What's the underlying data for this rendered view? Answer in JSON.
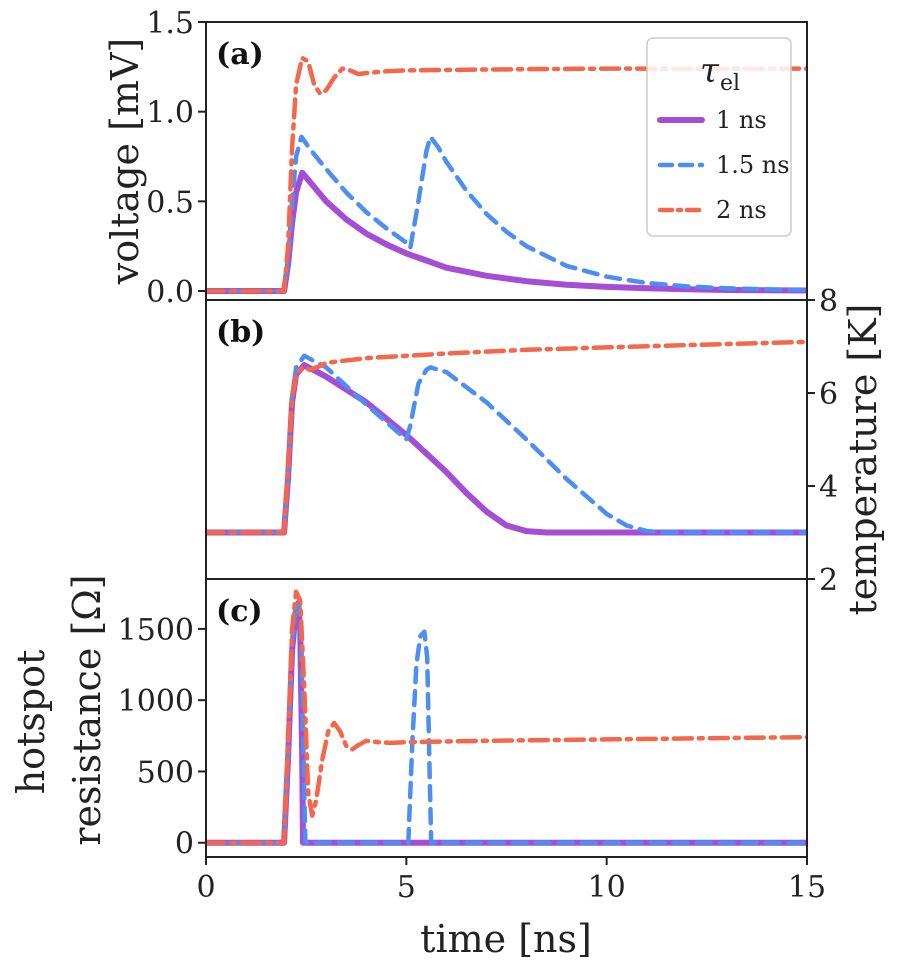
{
  "chart_data": [
    {
      "type": "line",
      "panel_label": "(a)",
      "ylabel": "voltage [mV]",
      "ylim": [
        -0.05,
        1.5
      ],
      "xlim": [
        0,
        15
      ],
      "yticks": [
        0.0,
        0.5,
        1.0,
        1.5
      ],
      "ytick_labels": [
        "0.0",
        "0.5",
        "1.0",
        "1.5"
      ],
      "legend": {
        "title": "τ",
        "title_subscript": "el",
        "placement": "top-right",
        "entries": [
          "1 ns",
          "1.5 ns",
          "2 ns"
        ]
      },
      "series": [
        {
          "name": "1 ns",
          "x": [
            0,
            1.95,
            2.05,
            2.15,
            2.25,
            2.4,
            2.7,
            3.0,
            3.5,
            4.0,
            4.5,
            5.0,
            5.5,
            6.0,
            7.0,
            8.0,
            9.0,
            10.0,
            11.0,
            12.0,
            13.0,
            14.0,
            15.0
          ],
          "y": [
            0,
            0,
            0.15,
            0.38,
            0.55,
            0.66,
            0.58,
            0.5,
            0.4,
            0.32,
            0.26,
            0.21,
            0.17,
            0.13,
            0.085,
            0.055,
            0.035,
            0.023,
            0.015,
            0.01,
            0.006,
            0.004,
            0.003
          ]
        },
        {
          "name": "1.5 ns",
          "x": [
            0,
            1.95,
            2.05,
            2.15,
            2.25,
            2.38,
            2.6,
            3.0,
            3.5,
            4.0,
            4.5,
            5.0,
            5.1,
            5.3,
            5.5,
            5.6,
            5.8,
            6.0,
            6.5,
            7.0,
            7.5,
            8.0,
            9.0,
            10.0,
            11.0,
            12.0,
            13.0,
            14.0,
            15.0
          ],
          "y": [
            0,
            0,
            0.18,
            0.5,
            0.75,
            0.86,
            0.79,
            0.68,
            0.55,
            0.44,
            0.35,
            0.27,
            0.24,
            0.5,
            0.78,
            0.86,
            0.8,
            0.72,
            0.56,
            0.43,
            0.33,
            0.25,
            0.14,
            0.08,
            0.045,
            0.026,
            0.015,
            0.009,
            0.005
          ]
        },
        {
          "name": "2 ns",
          "x": [
            0,
            1.95,
            2.05,
            2.15,
            2.25,
            2.4,
            2.55,
            2.7,
            2.85,
            3.0,
            3.2,
            3.4,
            3.6,
            3.8,
            4.0,
            4.5,
            5.0,
            7.0,
            10.0,
            13.0,
            15.0
          ],
          "y": [
            0,
            0,
            0.25,
            0.8,
            1.15,
            1.3,
            1.28,
            1.15,
            1.1,
            1.12,
            1.19,
            1.24,
            1.23,
            1.21,
            1.215,
            1.225,
            1.23,
            1.235,
            1.24,
            1.24,
            1.24
          ]
        }
      ]
    },
    {
      "type": "line",
      "panel_label": "(b)",
      "ylabel": "temperature [K]",
      "ylim": [
        2,
        8
      ],
      "xlim": [
        0,
        15
      ],
      "yticks": [
        2,
        4,
        6,
        8
      ],
      "ytick_labels": [
        "2",
        "4",
        "6",
        "8"
      ],
      "series": [
        {
          "name": "1 ns",
          "x": [
            0,
            1.95,
            2.05,
            2.15,
            2.25,
            2.45,
            3.0,
            4.0,
            5.0,
            6.0,
            6.5,
            7.0,
            7.5,
            8.0,
            8.5,
            9.0,
            10.0,
            15.0
          ],
          "y": [
            3.0,
            3.0,
            4.2,
            5.8,
            6.4,
            6.6,
            6.35,
            5.8,
            5.1,
            4.3,
            3.85,
            3.45,
            3.15,
            3.03,
            3.0,
            3.0,
            3.0,
            3.0
          ]
        },
        {
          "name": "1.5 ns",
          "x": [
            0,
            1.95,
            2.05,
            2.15,
            2.25,
            2.45,
            3.0,
            4.0,
            5.0,
            5.1,
            5.3,
            5.5,
            5.6,
            6.0,
            7.0,
            8.0,
            9.0,
            10.0,
            10.5,
            11.0,
            11.5,
            12.0,
            15.0
          ],
          "y": [
            3.0,
            3.0,
            4.3,
            5.9,
            6.55,
            6.8,
            6.55,
            5.75,
            5.0,
            5.3,
            6.2,
            6.5,
            6.55,
            6.45,
            5.8,
            5.0,
            4.15,
            3.4,
            3.15,
            3.03,
            3.0,
            3.0,
            3.0
          ]
        },
        {
          "name": "2 ns",
          "x": [
            0,
            1.95,
            2.05,
            2.15,
            2.25,
            2.4,
            2.6,
            2.9,
            3.0,
            4.0,
            6.0,
            8.0,
            10.0,
            12.0,
            15.0
          ],
          "y": [
            3.0,
            3.0,
            4.4,
            5.9,
            6.4,
            6.55,
            6.5,
            6.6,
            6.65,
            6.75,
            6.85,
            6.93,
            6.98,
            7.03,
            7.1
          ]
        }
      ]
    },
    {
      "type": "line",
      "panel_label": "(c)",
      "ylabel_line1": "hotspot",
      "ylabel_line2": "resistance [Ω]",
      "xlabel": "time [ns]",
      "ylim": [
        -100,
        1850
      ],
      "xlim": [
        0,
        15
      ],
      "yticks": [
        0,
        500,
        1000,
        1500
      ],
      "ytick_labels": [
        "0",
        "500",
        "1000",
        "1500"
      ],
      "xticks": [
        0,
        5,
        10,
        15
      ],
      "xtick_labels": [
        "0",
        "5",
        "10",
        "15"
      ],
      "series": [
        {
          "name": "1 ns",
          "x": [
            0,
            1.95,
            2.05,
            2.15,
            2.25,
            2.3,
            2.35,
            2.4,
            2.42,
            15.0
          ],
          "y": [
            0,
            0,
            600,
            1350,
            1650,
            1680,
            1500,
            600,
            0,
            0
          ]
        },
        {
          "name": "1.5 ns",
          "x": [
            0,
            1.95,
            2.05,
            2.15,
            2.25,
            2.32,
            2.38,
            2.44,
            2.48,
            5.05,
            5.15,
            5.25,
            5.35,
            5.45,
            5.52,
            5.58,
            5.62,
            15.0
          ],
          "y": [
            0,
            0,
            650,
            1400,
            1680,
            1700,
            1400,
            500,
            0,
            0,
            700,
            1250,
            1450,
            1480,
            1300,
            500,
            0,
            0
          ]
        },
        {
          "name": "2 ns",
          "x": [
            0,
            1.95,
            2.05,
            2.15,
            2.25,
            2.35,
            2.45,
            2.55,
            2.65,
            2.75,
            2.9,
            3.05,
            3.2,
            3.35,
            3.5,
            3.65,
            3.8,
            4.0,
            4.3,
            4.6,
            5.0,
            7.0,
            10.0,
            13.0,
            15.0
          ],
          "y": [
            0,
            0,
            700,
            1500,
            1760,
            1700,
            1100,
            350,
            190,
            300,
            580,
            780,
            840,
            780,
            680,
            655,
            685,
            715,
            705,
            700,
            705,
            715,
            725,
            735,
            740
          ]
        }
      ]
    }
  ]
}
